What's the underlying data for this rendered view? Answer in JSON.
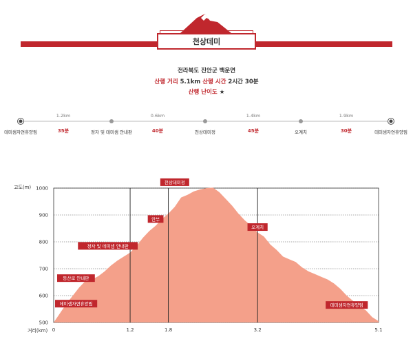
{
  "header": {
    "title": "천상데미",
    "location": "전라북도 진안군 백운면",
    "distance_label": "산행 거리",
    "distance_value": "5.1km",
    "time_label": "산행 시간",
    "time_value": "2시간 30분",
    "difficulty_label": "산행 난이도",
    "difficulty_stars": "★"
  },
  "route": {
    "stops": [
      {
        "label": "데미샘자연휴양림",
        "dot": "terminal"
      },
      {
        "label": "정자 및 데미샘 안내판",
        "dot": "waypoint"
      },
      {
        "label": "천상데미정",
        "dot": "waypoint"
      },
      {
        "label": "오계치",
        "dot": "waypoint"
      },
      {
        "label": "데미샘자연휴양림",
        "dot": "terminal"
      }
    ],
    "segments": [
      {
        "distance": "1.2km",
        "time": "35분"
      },
      {
        "distance": "0.6km",
        "time": "40분"
      },
      {
        "distance": "1.4km",
        "time": "45분"
      },
      {
        "distance": "1.9km",
        "time": "30분"
      }
    ]
  },
  "chart_data": {
    "type": "area",
    "ylabel": "고도(m)",
    "xlabel": "거리(km)",
    "ylim": [
      500,
      1000
    ],
    "yticks": [
      "1000",
      "900",
      "800",
      "700",
      "600",
      "500"
    ],
    "xticks": [
      "0",
      "1.2",
      "1.8",
      "3.2",
      "5.1"
    ],
    "xtick_values": [
      0,
      1.2,
      1.8,
      3.2,
      5.1
    ],
    "grid": true,
    "fill_color": "#f4a08a",
    "label_color": "#c0272d",
    "x": [
      0,
      0.1,
      0.2,
      0.3,
      0.4,
      0.5,
      0.6,
      0.7,
      0.8,
      0.9,
      1.0,
      1.1,
      1.2,
      1.3,
      1.4,
      1.5,
      1.6,
      1.7,
      1.8,
      1.9,
      2.0,
      2.1,
      2.2,
      2.3,
      2.4,
      2.5,
      2.6,
      2.7,
      2.8,
      2.9,
      3.0,
      3.1,
      3.2,
      3.3,
      3.4,
      3.5,
      3.6,
      3.7,
      3.8,
      3.9,
      4.0,
      4.1,
      4.2,
      4.3,
      4.4,
      4.5,
      4.6,
      4.7,
      4.8,
      4.9,
      5.0,
      5.1
    ],
    "y": [
      500,
      535,
      570,
      600,
      630,
      655,
      660,
      672,
      690,
      712,
      730,
      745,
      760,
      785,
      815,
      840,
      860,
      885,
      905,
      930,
      965,
      975,
      988,
      995,
      1000,
      1002,
      985,
      960,
      935,
      905,
      880,
      860,
      835,
      820,
      790,
      770,
      745,
      735,
      725,
      705,
      690,
      680,
      670,
      660,
      645,
      625,
      600,
      580,
      560,
      545,
      520,
      505
    ],
    "annotations": [
      {
        "text": "데미샘자연휴양림",
        "x": 0.35,
        "y": 570
      },
      {
        "text": "등산로 안내판",
        "x": 0.35,
        "y": 665
      },
      {
        "text": "정자 및 데미샘 안내판",
        "x": 0.85,
        "y": 785
      },
      {
        "text": "안부",
        "x": 1.6,
        "y": 885
      },
      {
        "text": "천상데미정",
        "x": 1.9,
        "y": 1022
      },
      {
        "text": "오계치",
        "x": 3.2,
        "y": 855
      },
      {
        "text": "데미샘자연휴양림",
        "x": 4.6,
        "y": 565
      }
    ]
  }
}
